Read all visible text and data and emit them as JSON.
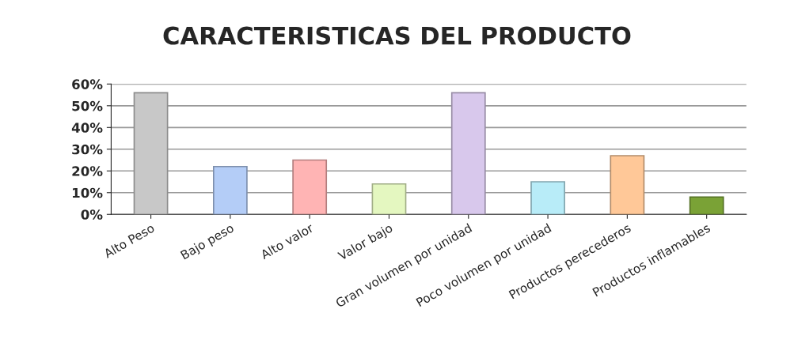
{
  "chart_data": {
    "type": "bar",
    "title": "CARACTERISTICAS DEL PRODUCTO",
    "categories": [
      "Alto Peso",
      "Bajo peso",
      "Alto valor",
      "Valor bajo",
      "Gran volumen por unidad",
      "Poco volumen por unidad",
      "Productos perecederos",
      "Productos inflamables"
    ],
    "values": [
      56,
      22,
      25,
      14,
      56,
      15,
      27,
      8
    ],
    "colors": [
      "#c8c8c8",
      "#b4cdf7",
      "#ffb4b4",
      "#e4f7c0",
      "#d8c8ec",
      "#b8ecf8",
      "#ffc898",
      "#7aa236"
    ],
    "ylim": [
      0,
      60
    ],
    "yticks": [
      {
        "value": 0,
        "label": "0%"
      },
      {
        "value": 10,
        "label": "10%"
      },
      {
        "value": 20,
        "label": "20%"
      },
      {
        "value": 30,
        "label": "30%"
      },
      {
        "value": 40,
        "label": "40%"
      },
      {
        "value": 50,
        "label": "50%"
      },
      {
        "value": 60,
        "label": "60%"
      }
    ],
    "grid": "y",
    "legend": false
  }
}
